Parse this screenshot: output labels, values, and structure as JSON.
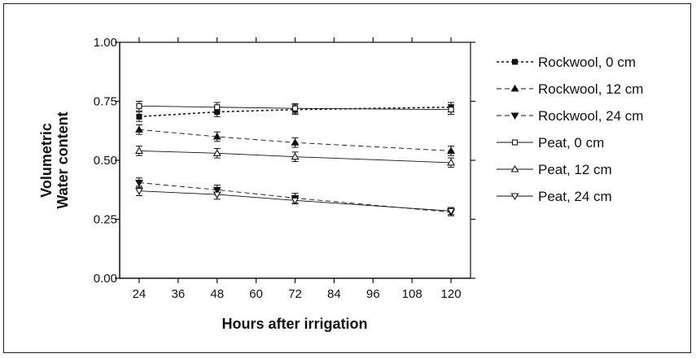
{
  "chart_data": {
    "type": "line",
    "xlabel": "Hours after irrigation",
    "ylabel_lines": [
      "Volumetric",
      "Water content"
    ],
    "xlim": [
      18,
      126
    ],
    "ylim": [
      0,
      1
    ],
    "xticks": [
      24,
      36,
      48,
      60,
      72,
      84,
      96,
      108,
      120
    ],
    "yticks": [
      "0.00",
      "0.25",
      "0.50",
      "0.75",
      "1.00"
    ],
    "grid": false,
    "legend_position": "right",
    "x": [
      24,
      48,
      72,
      120
    ],
    "series": [
      {
        "name": "Rockwool, 0 cm",
        "values": [
          0.685,
          0.705,
          0.715,
          0.725
        ],
        "errors": [
          0.02,
          0.02,
          0.02,
          0.02
        ],
        "marker": "square-filled",
        "dash": "3,3",
        "width": 1.6
      },
      {
        "name": "Rockwool, 12 cm",
        "values": [
          0.63,
          0.6,
          0.575,
          0.54
        ],
        "errors": [
          0.02,
          0.02,
          0.02,
          0.02
        ],
        "marker": "triangle-up-filled",
        "dash": "6,4",
        "width": 0.9
      },
      {
        "name": "Rockwool, 24 cm",
        "values": [
          0.405,
          0.375,
          0.34,
          0.28
        ],
        "errors": [
          0.02,
          0.02,
          0.02,
          0.015
        ],
        "marker": "triangle-down-filled",
        "dash": "6,4",
        "width": 0.9
      },
      {
        "name": "Peat, 0 cm",
        "values": [
          0.73,
          0.725,
          0.72,
          0.715
        ],
        "errors": [
          0.02,
          0.02,
          0.02,
          0.02
        ],
        "marker": "square-open",
        "dash": "",
        "width": 0.9
      },
      {
        "name": "Peat, 12 cm",
        "values": [
          0.54,
          0.53,
          0.515,
          0.49
        ],
        "errors": [
          0.02,
          0.02,
          0.02,
          0.02
        ],
        "marker": "triangle-up-open",
        "dash": "",
        "width": 0.9
      },
      {
        "name": "Peat, 24 cm",
        "values": [
          0.37,
          0.355,
          0.33,
          0.285
        ],
        "errors": [
          0.02,
          0.02,
          0.015,
          0.015
        ],
        "marker": "triangle-down-open",
        "dash": "",
        "width": 0.9
      }
    ]
  }
}
